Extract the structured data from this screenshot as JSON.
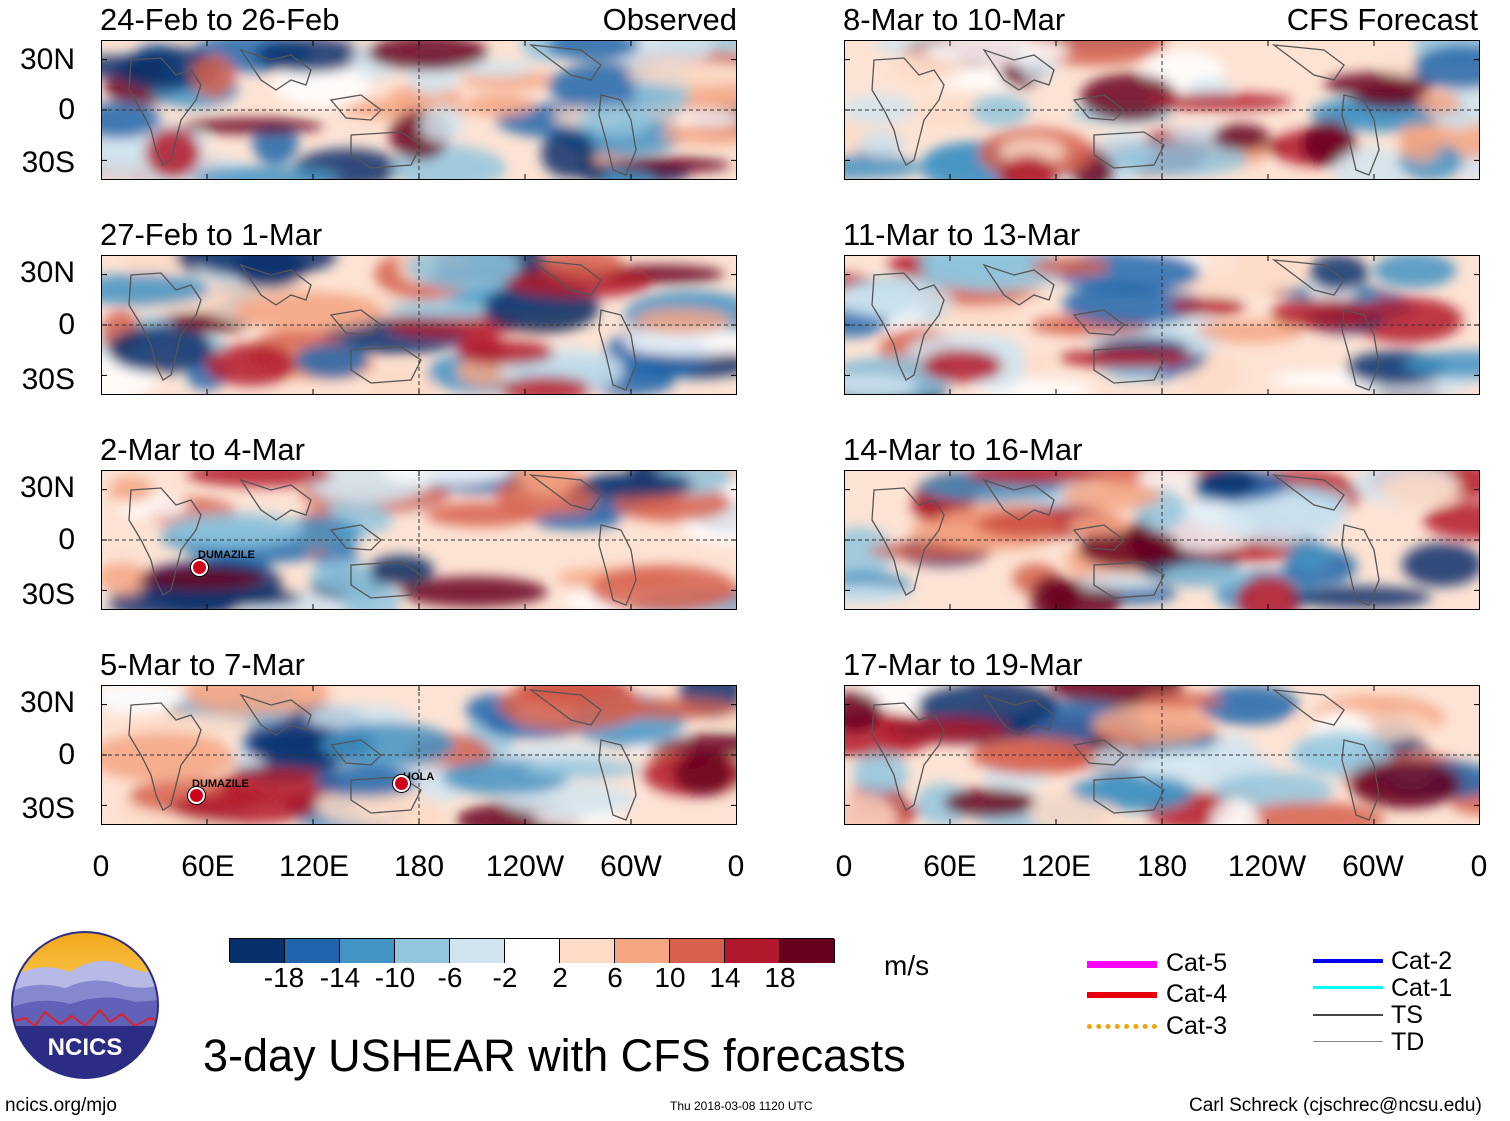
{
  "panels": [
    {
      "title": "24-Feb to 26-Feb",
      "kind": "Observed"
    },
    {
      "title": "27-Feb to 1-Mar",
      "kind": ""
    },
    {
      "title": "2-Mar to 4-Mar",
      "kind": ""
    },
    {
      "title": "5-Mar to 7-Mar",
      "kind": ""
    },
    {
      "title": "8-Mar to 10-Mar",
      "kind": "CFS Forecast"
    },
    {
      "title": "11-Mar to 13-Mar",
      "kind": ""
    },
    {
      "title": "14-Mar to 16-Mar",
      "kind": ""
    },
    {
      "title": "17-Mar to 19-Mar",
      "kind": ""
    }
  ],
  "lat_labels": [
    "30N",
    "0",
    "30S"
  ],
  "lon_labels": [
    "0",
    "60E",
    "120E",
    "180",
    "120W",
    "60W",
    "0"
  ],
  "storms": {
    "dumazile_1": "DUMAZILE",
    "dumazile_2": "DUMAZILE",
    "hola": "HOLA"
  },
  "colorbar": {
    "ticks": [
      "-18",
      "-14",
      "-10",
      "-6",
      "-2",
      "2",
      "6",
      "10",
      "14",
      "18"
    ],
    "unit": "m/s",
    "colors": [
      "#08306b",
      "#2166ac",
      "#4393c3",
      "#92c5de",
      "#d1e5f0",
      "#ffffff",
      "#fddbc7",
      "#f4a582",
      "#d6604d",
      "#b2182b",
      "#67001f"
    ]
  },
  "legend": {
    "cat5": "Cat-5",
    "cat4": "Cat-4",
    "cat3": "Cat-3",
    "cat2": "Cat-2",
    "cat1": "Cat-1",
    "ts": "TS",
    "td": "TD"
  },
  "legend_colors": {
    "cat5": "#ff00ff",
    "cat4": "#e8000b",
    "cat3": "#f0a30a",
    "cat2": "#0000ee",
    "cat1": "#00ffff",
    "ts": "#444444",
    "td": "#888888"
  },
  "logo_text": "NCICS",
  "main_title": "3-day USHEAR with CFS forecasts",
  "footer": {
    "url": "ncics.org/mjo",
    "timestamp": "Thu 2018-03-08 1120 UTC",
    "credit": "Carl Schreck (cjschrec@ncsu.edu)"
  }
}
